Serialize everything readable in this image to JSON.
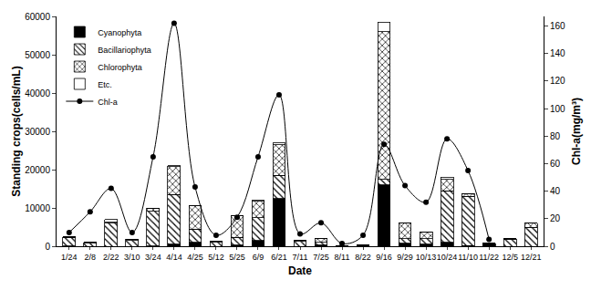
{
  "chart_data": {
    "type": "bar",
    "stacked": true,
    "legend": "top left",
    "grid": false,
    "x_label": "Date",
    "y_label": "Standing crops(cells/mL)",
    "y2_label": "Chl-a(mg/m³)",
    "categories": [
      "1/24",
      "2/8",
      "2/22",
      "3/10",
      "3/24",
      "4/14",
      "4/25",
      "5/12",
      "5/25",
      "6/9",
      "6/21",
      "7/11",
      "7/25",
      "8/11",
      "8/22",
      "9/16",
      "9/29",
      "10/13",
      "10/24",
      "11/10",
      "11/22",
      "12/5",
      "12/21"
    ],
    "ylim": [
      0,
      60000
    ],
    "yticks": [
      0,
      10000,
      20000,
      30000,
      40000,
      50000,
      60000
    ],
    "y2lim": [
      0,
      167
    ],
    "y2ticks": [
      0,
      20,
      40,
      60,
      80,
      100,
      120,
      140,
      160
    ],
    "series": [
      {
        "name": "Cyanophyta",
        "type": "bar",
        "color": "#000000",
        "marker": "solid",
        "values": [
          100,
          0,
          0,
          0,
          100,
          500,
          1000,
          0,
          300,
          1500,
          12500,
          0,
          300,
          50,
          50,
          16000,
          800,
          500,
          1000,
          200,
          600,
          0,
          0
        ]
      },
      {
        "name": "Bacillariophyta",
        "type": "bar",
        "color": "#ffffff",
        "marker": "hatch",
        "values": [
          2200,
          800,
          6000,
          1500,
          9000,
          13000,
          3500,
          1000,
          2000,
          6000,
          6000,
          1200,
          700,
          100,
          150,
          1500,
          1200,
          1500,
          13500,
          12800,
          200,
          1900,
          5000
        ]
      },
      {
        "name": "Chlorophyta",
        "type": "bar",
        "color": "#ffffff",
        "marker": "crosshatch",
        "values": [
          200,
          200,
          300,
          300,
          800,
          7300,
          6000,
          200,
          5700,
          4200,
          8000,
          300,
          1000,
          50,
          100,
          38500,
          4000,
          1700,
          3000,
          700,
          0,
          100,
          1000
        ]
      },
      {
        "name": "Etc.",
        "type": "bar",
        "color": "#ffffff",
        "marker": "none",
        "values": [
          0,
          0,
          700,
          0,
          0,
          200,
          0,
          0,
          0,
          300,
          500,
          0,
          0,
          0,
          0,
          2500,
          0,
          0,
          500,
          0,
          0,
          0,
          0
        ]
      },
      {
        "name": "Chl-a",
        "type": "line",
        "axis": "y2",
        "color": "#000000",
        "marker": "circle",
        "line_style": "solid",
        "values": [
          10,
          25,
          42,
          10,
          65,
          162,
          43,
          8,
          21,
          65,
          110,
          9,
          17,
          2,
          8,
          74,
          44,
          32,
          78,
          55,
          5,
          null,
          null
        ]
      }
    ]
  }
}
